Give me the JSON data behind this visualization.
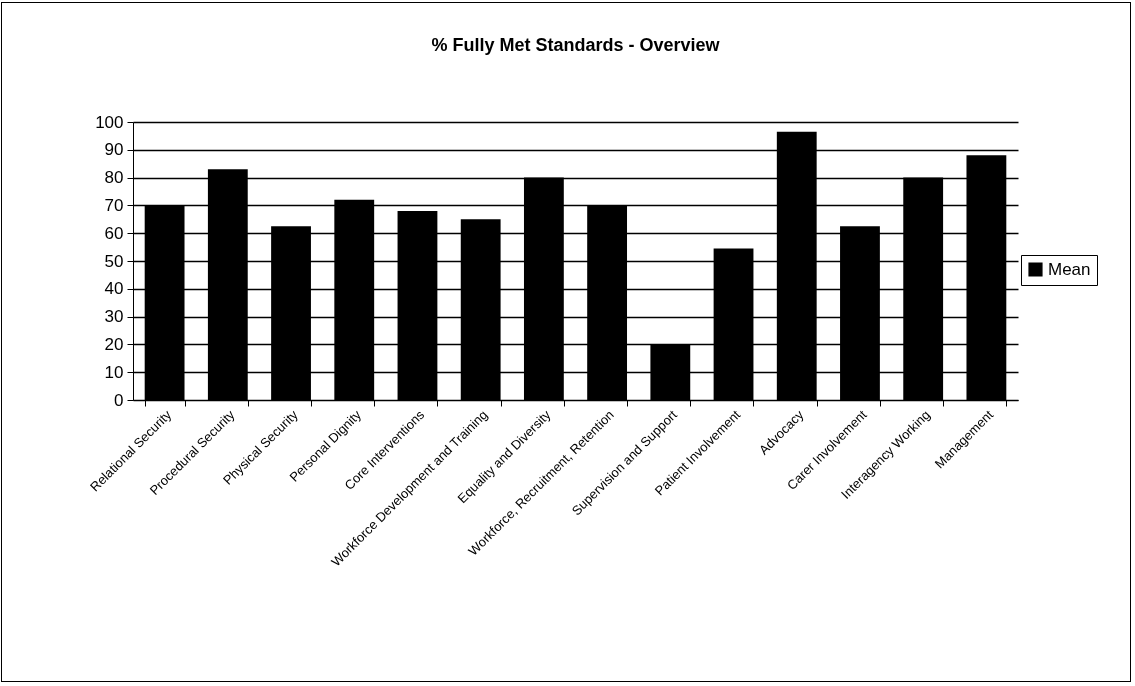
{
  "chart_data": {
    "type": "bar",
    "title": "% Fully Met Standards - Overview",
    "categories": [
      "Relational Security",
      "Procedural Security",
      "Physical Security",
      "Personal Dignity",
      "Core Interventions",
      "Workforce Development and Training",
      "Equality and Diversity",
      "Workforce, Recruitment, Retention",
      "Supervision and Support",
      "Patient Involvement",
      "Advocacy",
      "Carer Involvement",
      "Interagency Working",
      "Management"
    ],
    "series": [
      {
        "name": "Mean",
        "color": "#000000",
        "values": [
          70,
          83,
          62.5,
          72,
          68,
          65,
          80,
          70,
          20,
          54.5,
          96.5,
          62.5,
          80,
          88
        ]
      }
    ],
    "ylim": [
      0,
      100
    ],
    "yticks": [
      0,
      10,
      20,
      30,
      40,
      50,
      60,
      70,
      80,
      90,
      100
    ],
    "grid": "y",
    "legend": "right"
  }
}
